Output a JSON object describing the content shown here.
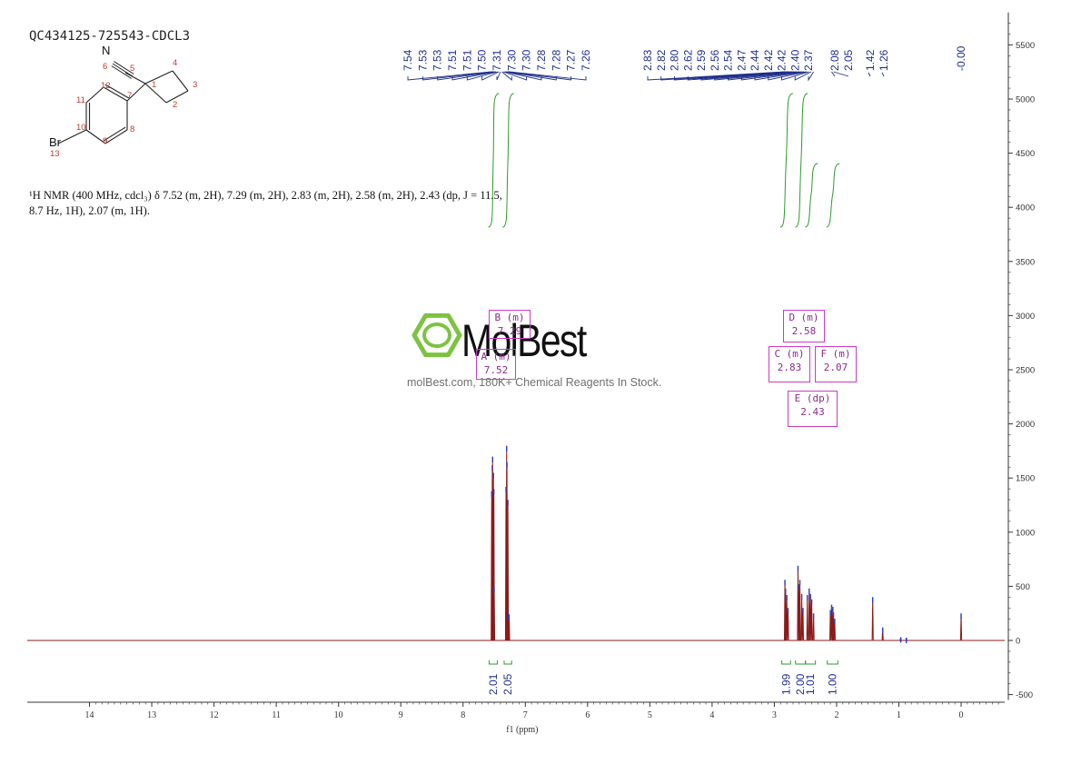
{
  "sample": {
    "title": "QC434125-725543-CDCL3"
  },
  "nmr_text": {
    "line1": "¹H NMR (400 MHz, cdcl₃) δ 7.52 (m, 2H), 7.29 (m, 2H), 2.83 (m, 2H), 2.58 (m, 2H), 2.43 (dp, J = 11.5,",
    "line2": "8.7 Hz, 1H), 2.07 (m, 1H)."
  },
  "watermark": {
    "brand": "MolBest",
    "tagline": "molBest.com, 180K+ Chemical Reagents In Stock."
  },
  "molecule": {
    "atoms": [
      {
        "label": "N",
        "num": "6"
      },
      {
        "label": "",
        "num": "5"
      },
      {
        "label": "",
        "num": "1"
      },
      {
        "label": "",
        "num": "4"
      },
      {
        "label": "",
        "num": "3"
      },
      {
        "label": "",
        "num": "2"
      },
      {
        "label": "",
        "num": "7"
      },
      {
        "label": "",
        "num": "12"
      },
      {
        "label": "",
        "num": "11"
      },
      {
        "label": "",
        "num": "10"
      },
      {
        "label": "",
        "num": "9"
      },
      {
        "label": "",
        "num": "8"
      },
      {
        "label": "Br",
        "num": "13"
      }
    ]
  },
  "multiplets": [
    {
      "label": "A (m)",
      "shift": "7.52"
    },
    {
      "label": "B (m)",
      "shift": "7.29"
    },
    {
      "label": "C (m)",
      "shift": "2.83"
    },
    {
      "label": "D (m)",
      "shift": "2.58"
    },
    {
      "label": "E (dp)",
      "shift": "2.43"
    },
    {
      "label": "F (m)",
      "shift": "2.07"
    }
  ],
  "chart_data": {
    "type": "line",
    "xlabel": "f1 (ppm)",
    "xlim": [
      15.0,
      -0.7
    ],
    "ylim": [
      -550,
      5800
    ],
    "x_ticks": [
      14,
      13,
      12,
      11,
      10,
      9,
      8,
      7,
      6,
      5,
      4,
      3,
      2,
      1,
      0
    ],
    "y_ticks": [
      -500,
      0,
      500,
      1000,
      1500,
      2000,
      2500,
      3000,
      3500,
      4000,
      4500,
      5000,
      5500
    ],
    "peak_labels_aromatic": [
      "7.54",
      "7.53",
      "7.53",
      "7.51",
      "7.51",
      "7.50",
      "7.31",
      "7.30",
      "7.30",
      "7.28",
      "7.28",
      "7.27",
      "7.26"
    ],
    "peak_labels_aliphatic": [
      "2.83",
      "2.82",
      "2.80",
      "2.62",
      "2.59",
      "2.56",
      "2.54",
      "2.47",
      "2.44",
      "2.42",
      "2.42",
      "2.40",
      "2.37",
      "2.08",
      "2.05",
      "1.42",
      "1.26"
    ],
    "peak_labels_reference": [
      "-0.00"
    ],
    "integrals": [
      {
        "from": 7.58,
        "to": 7.45,
        "value": "2.01"
      },
      {
        "from": 7.34,
        "to": 7.22,
        "value": "2.05"
      },
      {
        "from": 2.88,
        "to": 2.74,
        "value": "1.99"
      },
      {
        "from": 2.66,
        "to": 2.5,
        "value": "2.00"
      },
      {
        "from": 2.5,
        "to": 2.34,
        "value": "1.01"
      },
      {
        "from": 2.15,
        "to": 1.98,
        "value": "1.00"
      }
    ],
    "peaks": [
      {
        "x": 7.54,
        "y": 1380
      },
      {
        "x": 7.53,
        "y": 1620
      },
      {
        "x": 7.525,
        "y": 1700
      },
      {
        "x": 7.512,
        "y": 1550
      },
      {
        "x": 7.505,
        "y": 1400
      },
      {
        "x": 7.5,
        "y": 500
      },
      {
        "x": 7.31,
        "y": 1420
      },
      {
        "x": 7.3,
        "y": 1800
      },
      {
        "x": 7.295,
        "y": 1650
      },
      {
        "x": 7.28,
        "y": 1300
      },
      {
        "x": 7.27,
        "y": 250
      },
      {
        "x": 7.26,
        "y": 240
      },
      {
        "x": 2.83,
        "y": 560
      },
      {
        "x": 2.82,
        "y": 480
      },
      {
        "x": 2.8,
        "y": 420
      },
      {
        "x": 2.78,
        "y": 300
      },
      {
        "x": 2.62,
        "y": 690
      },
      {
        "x": 2.6,
        "y": 520
      },
      {
        "x": 2.59,
        "y": 560
      },
      {
        "x": 2.56,
        "y": 430
      },
      {
        "x": 2.54,
        "y": 300
      },
      {
        "x": 2.47,
        "y": 420
      },
      {
        "x": 2.44,
        "y": 480
      },
      {
        "x": 2.42,
        "y": 430
      },
      {
        "x": 2.4,
        "y": 380
      },
      {
        "x": 2.37,
        "y": 250
      },
      {
        "x": 2.1,
        "y": 280
      },
      {
        "x": 2.08,
        "y": 330
      },
      {
        "x": 2.06,
        "y": 310
      },
      {
        "x": 2.05,
        "y": 260
      },
      {
        "x": 2.03,
        "y": 200
      },
      {
        "x": 1.42,
        "y": 400
      },
      {
        "x": 1.26,
        "y": 120
      },
      {
        "x": 0.97,
        "y": 30
      },
      {
        "x": 0.88,
        "y": 25
      },
      {
        "x": 0.0,
        "y": 250
      }
    ],
    "colors": {
      "spectrum": "#8b1a1a",
      "integral": "#2e9a2e",
      "label": "#1f2f8a",
      "box": "#c83cc8",
      "axis": "#333333",
      "logo": "#7dc241"
    }
  }
}
